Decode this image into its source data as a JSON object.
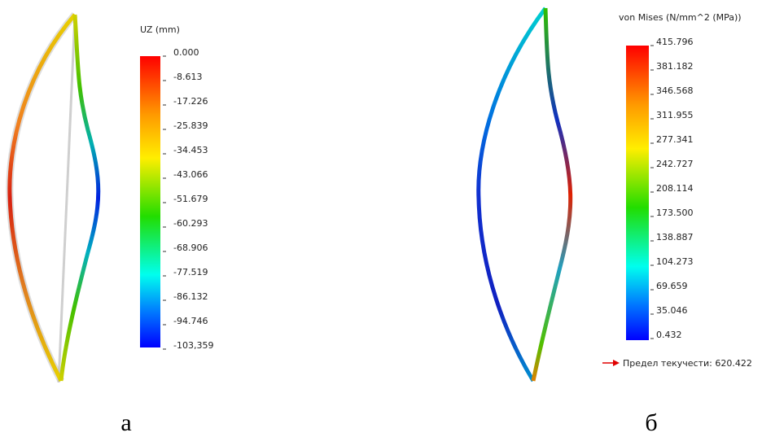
{
  "panels": [
    {
      "legend_title": "UZ (mm)",
      "ticks": [
        "0.000",
        "-8.613",
        "-17.226",
        "-25.839",
        "-34.453",
        "-43.066",
        "-51.679",
        "-60.293",
        "-68.906",
        "-77.519",
        "-86.132",
        "-94.746",
        "-103,359"
      ],
      "caption": "а"
    },
    {
      "legend_title": "von Mises (N/mm^2 (MPa))",
      "ticks": [
        "415.796",
        "381.182",
        "346.568",
        "311.955",
        "277.341",
        "242.727",
        "208.114",
        "173.500",
        "138.887",
        "104.273",
        "69.659",
        "35.046",
        "0.432"
      ],
      "yield_label": "Предел текучести: 620.422",
      "caption": "б"
    }
  ]
}
